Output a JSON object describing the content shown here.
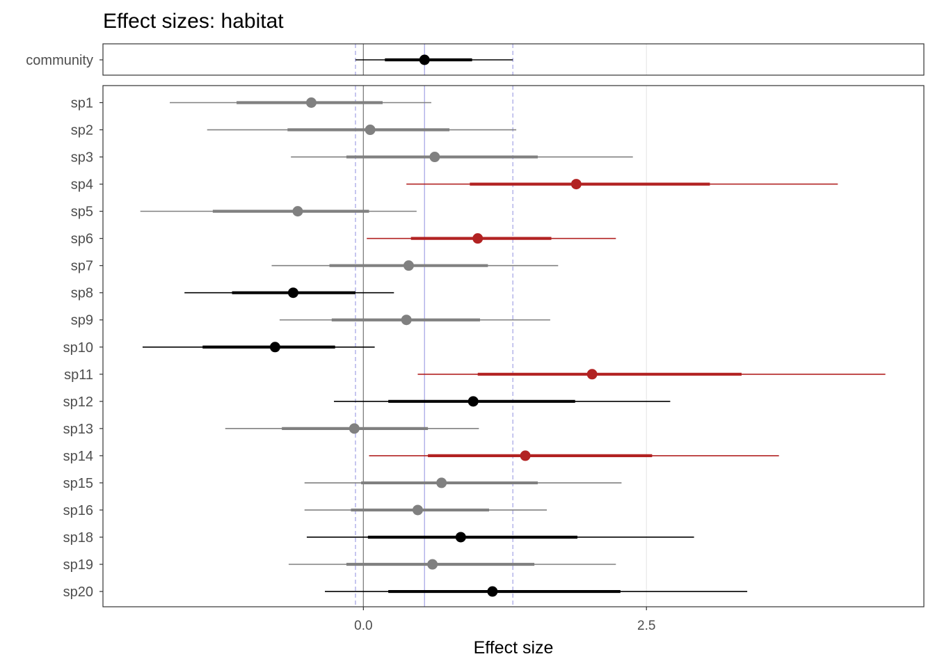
{
  "chart_data": {
    "type": "forest",
    "title": "Effect sizes: habitat",
    "xlabel": "Effect size",
    "x_ticks": [
      {
        "value": 0.0,
        "label": "0.0"
      },
      {
        "value": 2.5,
        "label": "2.5"
      }
    ],
    "xlim": [
      -2.3,
      4.95
    ],
    "grid": true,
    "reference_lines": {
      "zero": 0.0,
      "community_mean": 0.54,
      "community_interval": [
        -0.07,
        1.32
      ]
    },
    "colors": {
      "credible": "#000000",
      "not_credible": "#808080",
      "highlight": "#b22222",
      "reference_line": "#a8a8e6"
    },
    "community": {
      "label": "community",
      "mean": 0.54,
      "inner": [
        0.19,
        0.96
      ],
      "outer": [
        -0.07,
        1.32
      ],
      "color": "#000000"
    },
    "species": [
      {
        "label": "sp1",
        "mean": -0.46,
        "inner": [
          -1.12,
          0.17
        ],
        "outer": [
          -1.71,
          0.6
        ],
        "color": "#808080"
      },
      {
        "label": "sp2",
        "mean": 0.06,
        "inner": [
          -0.67,
          0.76
        ],
        "outer": [
          -1.38,
          1.35
        ],
        "color": "#808080"
      },
      {
        "label": "sp3",
        "mean": 0.63,
        "inner": [
          -0.15,
          1.54
        ],
        "outer": [
          -0.64,
          2.38
        ],
        "color": "#808080"
      },
      {
        "label": "sp4",
        "mean": 1.88,
        "inner": [
          0.94,
          3.06
        ],
        "outer": [
          0.38,
          4.19
        ],
        "color": "#b22222"
      },
      {
        "label": "sp5",
        "mean": -0.58,
        "inner": [
          -1.33,
          0.05
        ],
        "outer": [
          -1.97,
          0.47
        ],
        "color": "#808080"
      },
      {
        "label": "sp6",
        "mean": 1.01,
        "inner": [
          0.42,
          1.66
        ],
        "outer": [
          0.03,
          2.23
        ],
        "color": "#b22222"
      },
      {
        "label": "sp7",
        "mean": 0.4,
        "inner": [
          -0.3,
          1.1
        ],
        "outer": [
          -0.81,
          1.72
        ],
        "color": "#808080"
      },
      {
        "label": "sp8",
        "mean": -0.62,
        "inner": [
          -1.16,
          -0.07
        ],
        "outer": [
          -1.58,
          0.27
        ],
        "color": "#000000"
      },
      {
        "label": "sp9",
        "mean": 0.38,
        "inner": [
          -0.28,
          1.03
        ],
        "outer": [
          -0.74,
          1.65
        ],
        "color": "#808080"
      },
      {
        "label": "sp10",
        "mean": -0.78,
        "inner": [
          -1.42,
          -0.25
        ],
        "outer": [
          -1.95,
          0.1
        ],
        "color": "#000000"
      },
      {
        "label": "sp11",
        "mean": 2.02,
        "inner": [
          1.01,
          3.34
        ],
        "outer": [
          0.48,
          4.61
        ],
        "color": "#b22222"
      },
      {
        "label": "sp12",
        "mean": 0.97,
        "inner": [
          0.22,
          1.87
        ],
        "outer": [
          -0.26,
          2.71
        ],
        "color": "#000000"
      },
      {
        "label": "sp13",
        "mean": -0.08,
        "inner": [
          -0.72,
          0.57
        ],
        "outer": [
          -1.22,
          1.02
        ],
        "color": "#808080"
      },
      {
        "label": "sp14",
        "mean": 1.43,
        "inner": [
          0.57,
          2.55
        ],
        "outer": [
          0.05,
          3.67
        ],
        "color": "#b22222"
      },
      {
        "label": "sp15",
        "mean": 0.69,
        "inner": [
          -0.02,
          1.54
        ],
        "outer": [
          -0.52,
          2.28
        ],
        "color": "#808080"
      },
      {
        "label": "sp16",
        "mean": 0.48,
        "inner": [
          -0.11,
          1.11
        ],
        "outer": [
          -0.52,
          1.62
        ],
        "color": "#808080"
      },
      {
        "label": "sp18",
        "mean": 0.86,
        "inner": [
          0.04,
          1.89
        ],
        "outer": [
          -0.5,
          2.92
        ],
        "color": "#000000"
      },
      {
        "label": "sp19",
        "mean": 0.61,
        "inner": [
          -0.15,
          1.51
        ],
        "outer": [
          -0.66,
          2.23
        ],
        "color": "#808080"
      },
      {
        "label": "sp20",
        "mean": 1.14,
        "inner": [
          0.22,
          2.27
        ],
        "outer": [
          -0.34,
          3.39
        ],
        "color": "#000000"
      }
    ]
  }
}
